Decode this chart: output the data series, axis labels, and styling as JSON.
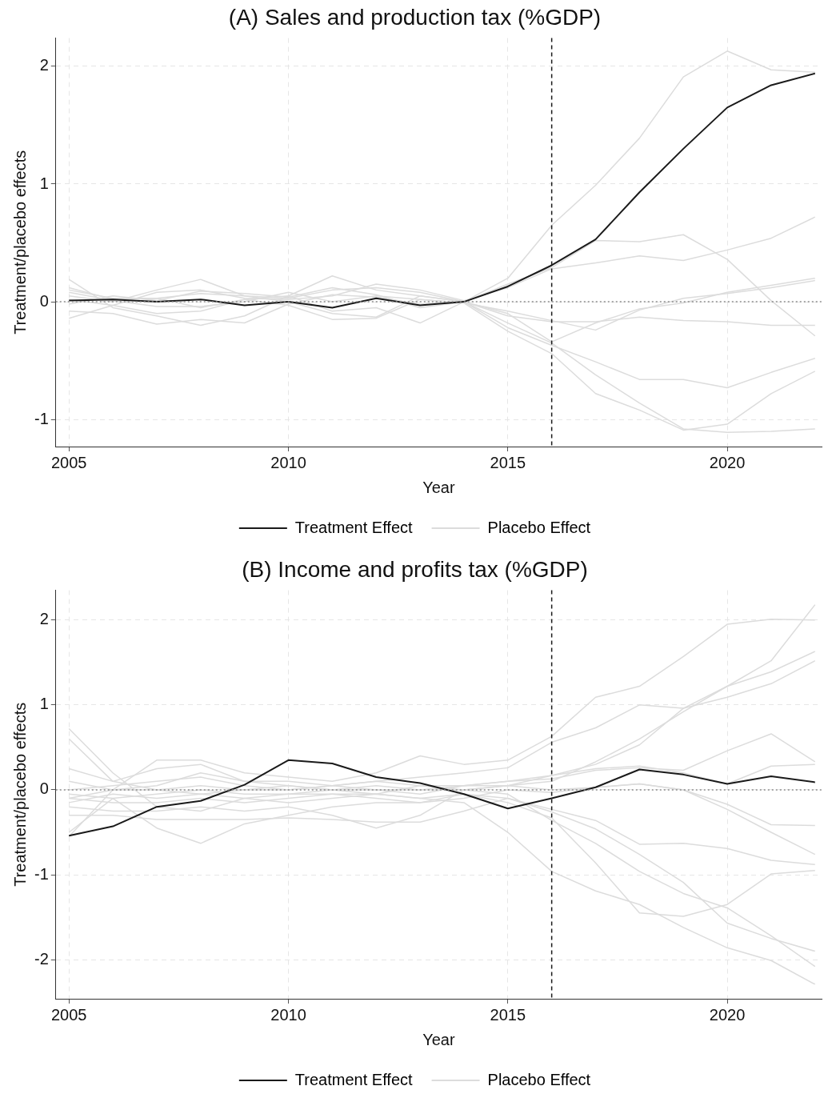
{
  "chart_data": [
    {
      "type": "line",
      "title": "(A) Sales and production tax (%GDP)",
      "xlabel": "Year",
      "ylabel": "Treatment/placebo effects",
      "x": [
        2005,
        2006,
        2007,
        2008,
        2009,
        2010,
        2011,
        2012,
        2013,
        2014,
        2015,
        2016,
        2017,
        2018,
        2019,
        2020,
        2021,
        2022
      ],
      "xlim": [
        2004.7,
        2022.15
      ],
      "xticks": [
        2005,
        2010,
        2015,
        2020
      ],
      "ylim": [
        -1.23,
        2.24
      ],
      "yticks": [
        -1,
        0,
        1,
        2
      ],
      "grid": true,
      "legend": "bottom",
      "ref_lines": [
        {
          "axis": "x",
          "value": 2016,
          "line_style": "dashed",
          "color": "#1a1a1a"
        },
        {
          "axis": "y",
          "value": 0,
          "line_style": "dotted",
          "color": "#8c8c8c"
        }
      ],
      "series": [
        {
          "name": "Treatment Effect",
          "color": "#1a1a1a",
          "values": [
            0.01,
            0.02,
            0,
            0.02,
            -0.03,
            0,
            -0.05,
            0.03,
            -0.03,
            0,
            0.13,
            0.31,
            0.53,
            0.93,
            1.3,
            1.65,
            1.84,
            1.94
          ]
        },
        {
          "name": "Placebo Effect",
          "color": "#dcdcdc",
          "values": [
            0.05,
            0.0,
            0.1,
            0.19,
            0.05,
            0.03,
            0.1,
            0.12,
            0.08,
            0,
            0.2,
            0.65,
            0.99,
            1.39,
            1.91,
            2.13,
            1.97,
            1.95
          ]
        },
        {
          "color": "#dcdcdc",
          "values": [
            0.12,
            0.02,
            0.03,
            -0.05,
            0.02,
            0.05,
            0.22,
            0.1,
            0.05,
            0,
            0.15,
            0.29,
            0.52,
            0.51,
            0.57,
            0.36,
            0.01,
            -0.29
          ]
        },
        {
          "color": "#dcdcdc",
          "values": [
            -0.14,
            -0.03,
            0.08,
            0.1,
            0.03,
            0.02,
            0.05,
            0.15,
            0.1,
            0.01,
            0.12,
            0.28,
            0.33,
            0.39,
            0.35,
            0.44,
            0.54,
            0.72
          ]
        },
        {
          "color": "#dcdcdc",
          "values": [
            0.19,
            -0.05,
            -0.12,
            -0.2,
            -0.12,
            0.05,
            -0.08,
            -0.05,
            -0.18,
            0,
            -0.1,
            -0.34,
            -0.18,
            -0.06,
            -0.01,
            0.08,
            0.14,
            0.2
          ]
        },
        {
          "color": "#dcdcdc",
          "values": [
            0.08,
            0.01,
            -0.04,
            -0.04,
            0,
            0.08,
            0.0,
            0.05,
            0.02,
            -0.01,
            -0.08,
            -0.16,
            -0.24,
            -0.07,
            0.03,
            0.07,
            0.12,
            0.18
          ]
        },
        {
          "color": "#dcdcdc",
          "values": [
            0.1,
            0.03,
            0.03,
            0.07,
            0.05,
            0.0,
            -0.1,
            -0.13,
            0.05,
            0.0,
            -0.12,
            -0.17,
            -0.17,
            -0.13,
            -0.16,
            -0.17,
            -0.2,
            -0.2
          ]
        },
        {
          "color": "#dcdcdc",
          "values": [
            -0.08,
            -0.1,
            -0.19,
            -0.15,
            -0.18,
            -0.02,
            0.06,
            0.04,
            -0.02,
            0,
            -0.22,
            -0.37,
            -0.51,
            -0.66,
            -0.66,
            -0.73,
            -0.6,
            -0.48
          ]
        },
        {
          "color": "#dcdcdc",
          "values": [
            0.02,
            -0.03,
            -0.1,
            -0.08,
            0.02,
            -0.03,
            -0.15,
            -0.14,
            0.02,
            -0.01,
            -0.25,
            -0.44,
            -0.78,
            -0.92,
            -1.09,
            -1.04,
            -0.78,
            -0.59
          ]
        },
        {
          "color": "#dcdcdc",
          "values": [
            -0.02,
            0.05,
            0.01,
            0.09,
            0.07,
            0.04,
            0.12,
            0.06,
            -0.05,
            0,
            -0.18,
            -0.35,
            -0.62,
            -0.86,
            -1.08,
            -1.11,
            -1.1,
            -1.08
          ]
        }
      ]
    },
    {
      "type": "line",
      "title": "(B) Income and profits tax (%GDP)",
      "xlabel": "Year",
      "ylabel": "Treatment/placebo effects",
      "x": [
        2005,
        2006,
        2007,
        2008,
        2009,
        2010,
        2011,
        2012,
        2013,
        2014,
        2015,
        2016,
        2017,
        2018,
        2019,
        2020,
        2021,
        2022
      ],
      "xlim": [
        2004.7,
        2022.15
      ],
      "xticks": [
        2005,
        2010,
        2015,
        2020
      ],
      "ylim": [
        -2.46,
        2.35
      ],
      "yticks": [
        -2,
        -1,
        0,
        1,
        2
      ],
      "grid": true,
      "legend": "bottom",
      "ref_lines": [
        {
          "axis": "x",
          "value": 2016,
          "line_style": "dashed",
          "color": "#1a1a1a"
        },
        {
          "axis": "y",
          "value": 0,
          "line_style": "dotted",
          "color": "#8c8c8c"
        }
      ],
      "series": [
        {
          "name": "Treatment Effect",
          "color": "#1a1a1a",
          "values": [
            -0.54,
            -0.43,
            -0.2,
            -0.13,
            0.06,
            0.35,
            0.31,
            0.15,
            0.08,
            -0.05,
            -0.22,
            -0.1,
            0.03,
            0.24,
            0.18,
            0.07,
            0.16,
            0.09
          ]
        },
        {
          "name": "Placebo Effect",
          "color": "#dcdcdc",
          "values": [
            0.0,
            0.05,
            0.1,
            0.15,
            0.05,
            0.0,
            0.05,
            0.1,
            0.15,
            0.2,
            0.26,
            0.56,
            0.73,
            1.0,
            0.96,
            1.09,
            1.25,
            1.52
          ]
        },
        {
          "color": "#dcdcdc",
          "values": [
            -0.1,
            0.0,
            0.35,
            0.35,
            0.2,
            0.15,
            0.1,
            0.2,
            0.4,
            0.3,
            0.35,
            0.63,
            1.09,
            1.22,
            1.57,
            1.95,
            2.01,
            2.0
          ]
        },
        {
          "color": "#dcdcdc",
          "values": [
            0.72,
            0.2,
            -0.2,
            -0.25,
            -0.1,
            -0.05,
            0.0,
            0.05,
            0.0,
            0.0,
            0.05,
            0.1,
            0.33,
            0.6,
            0.92,
            1.22,
            1.52,
            2.18
          ]
        },
        {
          "color": "#dcdcdc",
          "values": [
            0.6,
            0.1,
            0.0,
            0.05,
            0.0,
            0.0,
            0.05,
            0.1,
            0.05,
            0.05,
            0.1,
            0.17,
            0.3,
            0.53,
            0.96,
            1.22,
            1.39,
            1.63
          ]
        },
        {
          "color": "#dcdcdc",
          "values": [
            0.25,
            0.1,
            0.25,
            0.3,
            0.1,
            0.05,
            0.0,
            0.0,
            -0.05,
            0.05,
            0.1,
            0.13,
            0.23,
            0.26,
            0.23,
            0.46,
            0.66,
            0.33
          ]
        },
        {
          "color": "#dcdcdc",
          "values": [
            -0.55,
            0.0,
            0.05,
            0.2,
            0.1,
            0.1,
            0.05,
            0.0,
            0.0,
            0.05,
            0.05,
            0.17,
            0.25,
            0.28,
            0.2,
            0.07,
            0.28,
            0.3
          ]
        },
        {
          "color": "#dcdcdc",
          "values": [
            -0.5,
            -0.1,
            -0.45,
            -0.63,
            -0.4,
            -0.3,
            -0.2,
            -0.15,
            -0.15,
            -0.1,
            0.0,
            -0.03,
            0.03,
            0.07,
            0.0,
            -0.17,
            -0.41,
            -0.42
          ]
        },
        {
          "color": "#dcdcdc",
          "values": [
            -0.2,
            -0.25,
            -0.25,
            -0.2,
            -0.25,
            -0.2,
            -0.3,
            -0.45,
            -0.3,
            0.0,
            0.05,
            0.0,
            0.03,
            0.07,
            0.0,
            -0.23,
            -0.5,
            -0.76
          ]
        },
        {
          "color": "#dcdcdc",
          "values": [
            -0.3,
            -0.3,
            -0.35,
            -0.35,
            -0.35,
            -0.33,
            -0.35,
            -0.38,
            -0.38,
            -0.25,
            -0.1,
            -0.23,
            -0.36,
            -0.64,
            -0.63,
            -0.69,
            -0.83,
            -0.88
          ]
        },
        {
          "color": "#dcdcdc",
          "values": [
            -0.15,
            -0.05,
            -0.1,
            -0.05,
            -0.1,
            -0.15,
            -0.1,
            -0.05,
            -0.1,
            -0.05,
            -0.15,
            -0.33,
            -0.86,
            -1.45,
            -1.49,
            -1.35,
            -0.99,
            -0.95
          ]
        },
        {
          "color": "#dcdcdc",
          "values": [
            -0.05,
            -0.1,
            -0.05,
            0.0,
            -0.05,
            -0.05,
            -0.05,
            -0.1,
            -0.15,
            -0.05,
            -0.1,
            -0.26,
            -0.46,
            -0.76,
            -1.09,
            -1.57,
            -1.75,
            -1.9
          ]
        },
        {
          "color": "#dcdcdc",
          "values": [
            0.1,
            0.0,
            0.0,
            -0.05,
            0.0,
            0.05,
            0.0,
            -0.05,
            0.05,
            0.0,
            -0.05,
            -0.36,
            -0.63,
            -0.96,
            -1.22,
            -1.39,
            -1.72,
            -2.08
          ]
        },
        {
          "color": "#dcdcdc",
          "values": [
            -0.1,
            -0.15,
            -0.15,
            -0.1,
            -0.15,
            -0.1,
            -0.05,
            -0.05,
            -0.1,
            -0.15,
            -0.5,
            -0.96,
            -1.19,
            -1.35,
            -1.62,
            -1.86,
            -2.01,
            -2.29
          ]
        }
      ]
    }
  ]
}
